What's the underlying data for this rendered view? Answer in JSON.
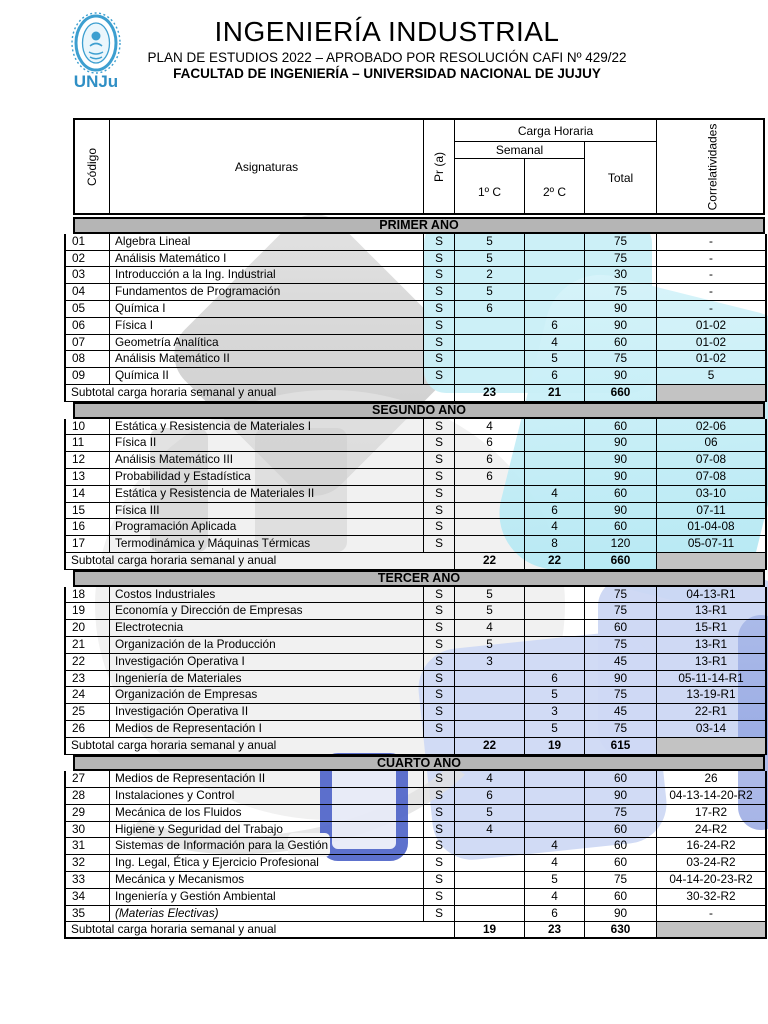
{
  "header": {
    "title": "INGENIERÍA INDUSTRIAL",
    "subtitle1": "PLAN DE ESTUDIOS 2022 – APROBADO POR RESOLUCIÓN CAFI Nº 429/22",
    "subtitle2": "FACULTAD DE INGENIERÍA – UNIVERSIDAD NACIONAL DE JUJUY",
    "logo_text": "UNJu"
  },
  "colors": {
    "band_gray": "#b5b5b5",
    "subtotal_gray": "#c3c3c3",
    "logo_blue": "#3d9fd0",
    "watermark_cyan": "#bce9f3",
    "watermark_periwinkle": "#ccd7f3",
    "watermark_blue": "#5065c9",
    "watermark_gray": "#bfbfbf"
  },
  "table": {
    "columns": {
      "codigo": "Código",
      "asignaturas": "Asignaturas",
      "pr": "Pr (a)",
      "carga_horaria": "Carga Horaria",
      "semanal": "Semanal",
      "c1": "1º C",
      "c2": "2º C",
      "total": "Total",
      "correlatividades": "Correlatividades"
    },
    "subtotal_label": "Subtotal carga horaria semanal y anual",
    "sections": [
      {
        "band": "PRIMER AÑO",
        "rows": [
          {
            "code": "01",
            "name": "Algebra Lineal",
            "pr": "S",
            "c1": "5",
            "c2": "",
            "total": "75",
            "corr": "-"
          },
          {
            "code": "02",
            "name": "Análisis Matemático I",
            "pr": "S",
            "c1": "5",
            "c2": "",
            "total": "75",
            "corr": "-"
          },
          {
            "code": "03",
            "name": "Introducción a la Ing. Industrial",
            "pr": "S",
            "c1": "2",
            "c2": "",
            "total": "30",
            "corr": "-"
          },
          {
            "code": "04",
            "name": "Fundamentos de Programación",
            "pr": "S",
            "c1": "5",
            "c2": "",
            "total": "75",
            "corr": "-"
          },
          {
            "code": "05",
            "name": "Química I",
            "pr": "S",
            "c1": "6",
            "c2": "",
            "total": "90",
            "corr": "-"
          },
          {
            "code": "06",
            "name": "Física I",
            "pr": "S",
            "c1": "",
            "c2": "6",
            "total": "90",
            "corr": "01-02"
          },
          {
            "code": "07",
            "name": "Geometría Analítica",
            "pr": "S",
            "c1": "",
            "c2": "4",
            "total": "60",
            "corr": "01-02"
          },
          {
            "code": "08",
            "name": "Análisis Matemático II",
            "pr": "S",
            "c1": "",
            "c2": "5",
            "total": "75",
            "corr": "01-02"
          },
          {
            "code": "09",
            "name": "Química II",
            "pr": "S",
            "c1": "",
            "c2": "6",
            "total": "90",
            "corr": "5"
          }
        ],
        "subtotal": {
          "c1": "23",
          "c2": "21",
          "total": "660"
        }
      },
      {
        "band": "SEGUNDO AÑO",
        "rows": [
          {
            "code": "10",
            "name": "Estática y Resistencia de Materiales I",
            "pr": "S",
            "c1": "4",
            "c2": "",
            "total": "60",
            "corr": "02-06"
          },
          {
            "code": "11",
            "name": "Física II",
            "pr": "S",
            "c1": "6",
            "c2": "",
            "total": "90",
            "corr": "06"
          },
          {
            "code": "12",
            "name": "Análisis Matemático III",
            "pr": "S",
            "c1": "6",
            "c2": "",
            "total": "90",
            "corr": "07-08"
          },
          {
            "code": "13",
            "name": "Probabilidad y Estadística",
            "pr": "S",
            "c1": "6",
            "c2": "",
            "total": "90",
            "corr": "07-08"
          },
          {
            "code": "14",
            "name": "Estática y Resistencia de Materiales II",
            "pr": "S",
            "c1": "",
            "c2": "4",
            "total": "60",
            "corr": "03-10"
          },
          {
            "code": "15",
            "name": "Física III",
            "pr": "S",
            "c1": "",
            "c2": "6",
            "total": "90",
            "corr": "07-11"
          },
          {
            "code": "16",
            "name": "Programación Aplicada",
            "pr": "S",
            "c1": "",
            "c2": "4",
            "total": "60",
            "corr": "01-04-08"
          },
          {
            "code": "17",
            "name": "Termodinámica y Máquinas Térmicas",
            "pr": "S",
            "c1": "",
            "c2": "8",
            "total": "120",
            "corr": "05-07-11"
          }
        ],
        "subtotal": {
          "c1": "22",
          "c2": "22",
          "total": "660"
        }
      },
      {
        "band": "TERCER AÑO",
        "rows": [
          {
            "code": "18",
            "name": "Costos Industriales",
            "pr": "S",
            "c1": "5",
            "c2": "",
            "total": "75",
            "corr": "04-13-R1"
          },
          {
            "code": "19",
            "name": "Economía y Dirección de Empresas",
            "pr": "S",
            "c1": "5",
            "c2": "",
            "total": "75",
            "corr": "13-R1"
          },
          {
            "code": "20",
            "name": "Electrotecnia",
            "pr": "S",
            "c1": "4",
            "c2": "",
            "total": "60",
            "corr": "15-R1"
          },
          {
            "code": "21",
            "name": "Organización de la Producción",
            "pr": "S",
            "c1": "5",
            "c2": "",
            "total": "75",
            "corr": "13-R1"
          },
          {
            "code": "22",
            "name": "Investigación Operativa I",
            "pr": "S",
            "c1": "3",
            "c2": "",
            "total": "45",
            "corr": "13-R1"
          },
          {
            "code": "23",
            "name": "Ingeniería de Materiales",
            "pr": "S",
            "c1": "",
            "c2": "6",
            "total": "90",
            "corr": "05-11-14-R1"
          },
          {
            "code": "24",
            "name": "Organización de Empresas",
            "pr": "S",
            "c1": "",
            "c2": "5",
            "total": "75",
            "corr": "13-19-R1"
          },
          {
            "code": "25",
            "name": "Investigación Operativa II",
            "pr": "S",
            "c1": "",
            "c2": "3",
            "total": "45",
            "corr": "22-R1"
          },
          {
            "code": "26",
            "name": "Medios de Representación I",
            "pr": "S",
            "c1": "",
            "c2": "5",
            "total": "75",
            "corr": "03-14"
          }
        ],
        "subtotal": {
          "c1": "22",
          "c2": "19",
          "total": "615"
        }
      },
      {
        "band": "CUARTO AÑO",
        "rows": [
          {
            "code": "27",
            "name": "Medios de Representación II",
            "pr": "S",
            "c1": "4",
            "c2": "",
            "total": "60",
            "corr": "26"
          },
          {
            "code": "28",
            "name": "Instalaciones y Control",
            "pr": "S",
            "c1": "6",
            "c2": "",
            "total": "90",
            "corr": "04-13-14-20-R2"
          },
          {
            "code": "29",
            "name": "Mecánica de los Fluidos",
            "pr": "S",
            "c1": "5",
            "c2": "",
            "total": "75",
            "corr": "17-R2"
          },
          {
            "code": "30",
            "name": "Higiene y Seguridad del Trabajo",
            "pr": "S",
            "c1": "4",
            "c2": "",
            "total": "60",
            "corr": "24-R2"
          },
          {
            "code": "31",
            "name": "Sistemas de Información para la Gestión",
            "pr": "S",
            "c1": "",
            "c2": "4",
            "total": "60",
            "corr": "16-24-R2"
          },
          {
            "code": "32",
            "name": "Ing. Legal, Ética y Ejercicio Profesional",
            "pr": "S",
            "c1": "",
            "c2": "4",
            "total": "60",
            "corr": "03-24-R2"
          },
          {
            "code": "33",
            "name": "Mecánica y Mecanismos",
            "pr": "S",
            "c1": "",
            "c2": "5",
            "total": "75",
            "corr": "04-14-20-23-R2"
          },
          {
            "code": "34",
            "name": "Ingeniería y Gestión Ambiental",
            "pr": "S",
            "c1": "",
            "c2": "4",
            "total": "60",
            "corr": "30-32-R2"
          },
          {
            "code": "35",
            "name": "(Materias Electivas)",
            "pr": "S",
            "c1": "",
            "c2": "6",
            "total": "90",
            "corr": "-",
            "italic": true
          }
        ],
        "subtotal": {
          "c1": "19",
          "c2": "23",
          "total": "630"
        }
      }
    ]
  }
}
